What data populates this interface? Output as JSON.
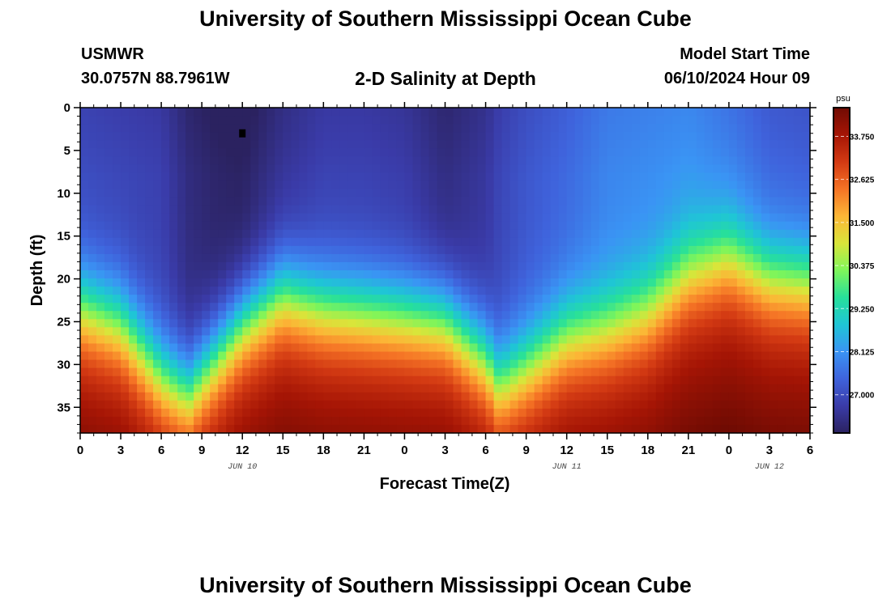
{
  "page": {
    "title": "University of Southern Mississippi Ocean Cube",
    "station": "USMWR",
    "coords": "30.0757N  88.7961W",
    "subtitle": "2-D Salinity at Depth",
    "model_label": "Model Start Time",
    "model_time": "06/10/2024 Hour 09",
    "footer_title": "University of Southern Mississippi Ocean Cube"
  },
  "chart_data": {
    "type": "heatmap",
    "title": "2-D Salinity at Depth",
    "xlabel": "Forecast Time(Z)",
    "ylabel": "Depth (ft)",
    "x_ticks": [
      "0",
      "3",
      "6",
      "9",
      "12",
      "15",
      "18",
      "21",
      "0",
      "3",
      "6",
      "9",
      "12",
      "15",
      "18",
      "21",
      "0",
      "3",
      "6"
    ],
    "x_range_hours": [
      0,
      54
    ],
    "date_labels": [
      {
        "label": "JUN 10",
        "hour": 12
      },
      {
        "label": "JUN 11",
        "hour": 36
      },
      {
        "label": "JUN 12",
        "hour": 51
      }
    ],
    "y_ticks": [
      "0",
      "5",
      "10",
      "15",
      "20",
      "25",
      "30",
      "35"
    ],
    "ylim": [
      0,
      38
    ],
    "y_inverted": true,
    "colorbar": {
      "unit": "psu",
      "min": 26.0,
      "max": 34.5,
      "tick_labels": [
        "33.750",
        "32.625",
        "31.500",
        "30.375",
        "29.250",
        "28.125",
        "27.000"
      ],
      "colors": [
        "#2b2260",
        "#3a3ba8",
        "#3f63dc",
        "#3a94f4",
        "#1fc5d6",
        "#27e09a",
        "#7ff55a",
        "#d9e53a",
        "#fcb636",
        "#f57325",
        "#d33a13",
        "#a51505",
        "#700b03"
      ]
    },
    "marker": {
      "hour": 12,
      "depth_ft": 3
    },
    "profile_columns": [
      {
        "hour": 0,
        "low_surface": 27.0,
        "iso_depth_ft": 23.0
      },
      {
        "hour": 3,
        "low_surface": 26.9,
        "iso_depth_ft": 25.0
      },
      {
        "hour": 6,
        "low_surface": 26.8,
        "iso_depth_ft": 31.0
      },
      {
        "hour": 8,
        "low_surface": 26.3,
        "iso_depth_ft": 33.0
      },
      {
        "hour": 10,
        "low_surface": 26.1,
        "iso_depth_ft": 29.0
      },
      {
        "hour": 12,
        "low_surface": 26.0,
        "iso_depth_ft": 25.0
      },
      {
        "hour": 15,
        "low_surface": 26.5,
        "iso_depth_ft": 21.5
      },
      {
        "hour": 18,
        "low_surface": 26.8,
        "iso_depth_ft": 23.0
      },
      {
        "hour": 21,
        "low_surface": 26.8,
        "iso_depth_ft": 23.5
      },
      {
        "hour": 24,
        "low_surface": 26.7,
        "iso_depth_ft": 24.0
      },
      {
        "hour": 27,
        "low_surface": 26.3,
        "iso_depth_ft": 24.5
      },
      {
        "hour": 30,
        "low_surface": 26.6,
        "iso_depth_ft": 29.0
      },
      {
        "hour": 31,
        "low_surface": 26.9,
        "iso_depth_ft": 32.0
      },
      {
        "hour": 33,
        "low_surface": 27.2,
        "iso_depth_ft": 30.0
      },
      {
        "hour": 36,
        "low_surface": 27.5,
        "iso_depth_ft": 26.5
      },
      {
        "hour": 39,
        "low_surface": 27.9,
        "iso_depth_ft": 25.5
      },
      {
        "hour": 42,
        "low_surface": 28.0,
        "iso_depth_ft": 23.5
      },
      {
        "hour": 45,
        "low_surface": 28.1,
        "iso_depth_ft": 19.0
      },
      {
        "hour": 48,
        "low_surface": 27.8,
        "iso_depth_ft": 17.0
      },
      {
        "hour": 51,
        "low_surface": 27.4,
        "iso_depth_ft": 19.5
      },
      {
        "hour": 54,
        "low_surface": 27.3,
        "iso_depth_ft": 20.0
      }
    ]
  }
}
